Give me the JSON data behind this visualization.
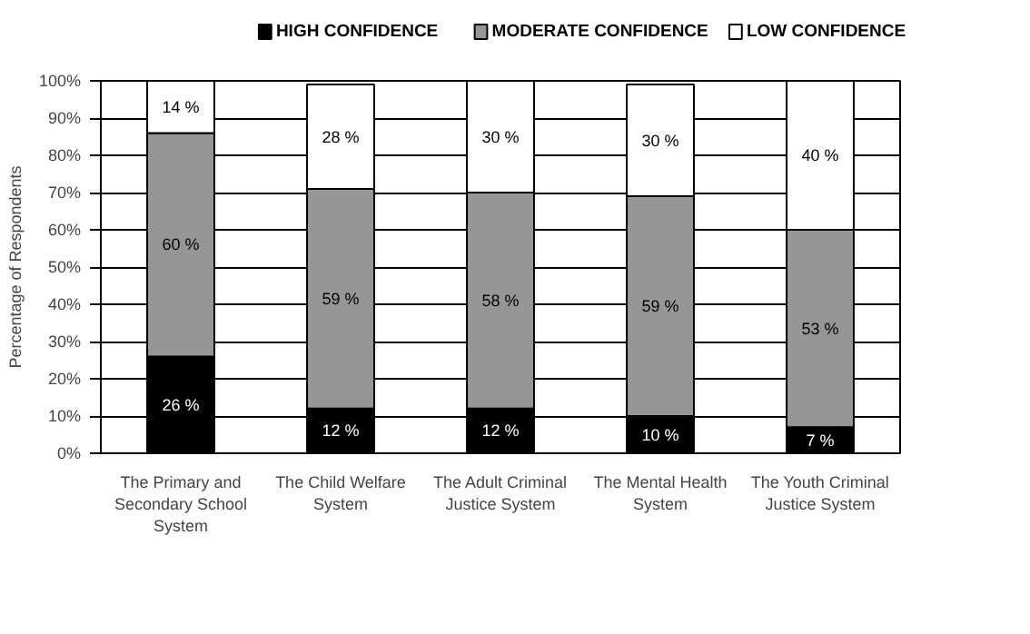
{
  "chart_data": {
    "type": "bar",
    "stacked": true,
    "ylabel": "Percentage of Respondents",
    "categories": [
      "The Primary and Secondary School System",
      "The Child Welfare System",
      "The Adult Criminal Justice System",
      "The Mental Health System",
      "The Youth Criminal Justice System"
    ],
    "series": [
      {
        "name": "HIGH CONFIDENCE",
        "color": "#000000",
        "values": [
          26,
          12,
          12,
          10,
          7
        ],
        "value_labels": [
          "26 %",
          "12 %",
          "12 %",
          "10 %",
          "7 %"
        ]
      },
      {
        "name": "MODERATE CONFIDENCE",
        "color": "#969696",
        "values": [
          60,
          59,
          58,
          59,
          53
        ],
        "value_labels": [
          "60 %",
          "59 %",
          "58 %",
          "59 %",
          "53 %"
        ]
      },
      {
        "name": "LOW CONFIDENCE",
        "color": "#ffffff",
        "values": [
          14,
          28,
          30,
          30,
          40
        ],
        "value_labels": [
          "14 %",
          "28 %",
          "30 %",
          "30 %",
          "40 %"
        ]
      }
    ],
    "ylim": [
      0,
      100
    ],
    "yticks": [
      {
        "value": 0,
        "label": "0%"
      },
      {
        "value": 10,
        "label": "10%"
      },
      {
        "value": 20,
        "label": "20%"
      },
      {
        "value": 30,
        "label": "30%"
      },
      {
        "value": 40,
        "label": "40%"
      },
      {
        "value": 50,
        "label": "50%"
      },
      {
        "value": 60,
        "label": "60%"
      },
      {
        "value": 70,
        "label": "70%"
      },
      {
        "value": 80,
        "label": "80%"
      },
      {
        "value": 90,
        "label": "90%"
      },
      {
        "value": 100,
        "label": "100%"
      }
    ],
    "grid": "y",
    "legend": "top"
  }
}
